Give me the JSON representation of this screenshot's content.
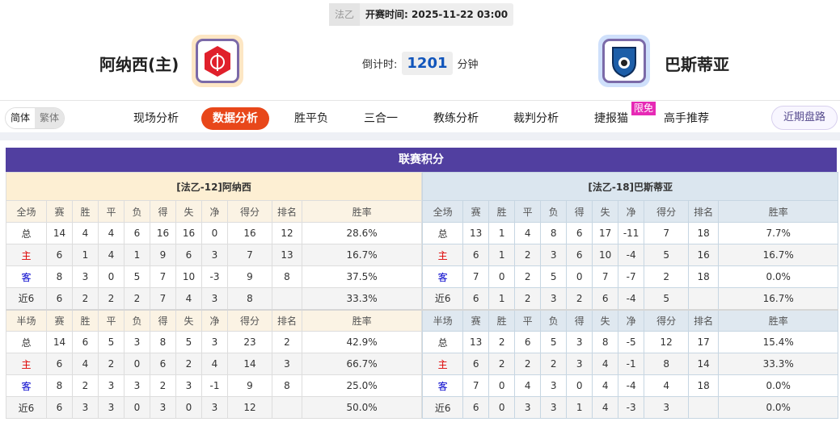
{
  "match": {
    "league": "法乙",
    "kickoff_label": "开赛时间:",
    "kickoff": "2025-11-22 03:00",
    "home": "阿纳西(主)",
    "away": "巴斯蒂亚",
    "countdown_label": "倒计时:",
    "countdown": "1201",
    "countdown_unit": "分钟"
  },
  "lang": {
    "simplified": "简体",
    "traditional": "繁体"
  },
  "nav": {
    "items": [
      "现场分析",
      "数据分析",
      "胜平负",
      "三合一",
      "教练分析",
      "裁判分析",
      "捷报猫",
      "高手推荐"
    ],
    "active": "数据分析",
    "badge": "限免",
    "recent": "近期盘路"
  },
  "colors": {
    "accent": "#e8471a",
    "title_bar": "#513fa0",
    "home_label": "#dd0000",
    "away_label": "#0000cc"
  },
  "standings": {
    "title": "联赛积分",
    "columns_full": [
      "全场",
      "赛",
      "胜",
      "平",
      "负",
      "得",
      "失",
      "净",
      "得分",
      "排名",
      "胜率"
    ],
    "columns_half": [
      "半场",
      "赛",
      "胜",
      "平",
      "负",
      "得",
      "失",
      "净",
      "得分",
      "排名",
      "胜率"
    ],
    "home": {
      "header": "[法乙-12]阿纳西",
      "full": [
        [
          "总",
          "14",
          "4",
          "4",
          "6",
          "16",
          "16",
          "0",
          "16",
          "12",
          "28.6%"
        ],
        [
          "主",
          "6",
          "1",
          "4",
          "1",
          "9",
          "6",
          "3",
          "7",
          "13",
          "16.7%"
        ],
        [
          "客",
          "8",
          "3",
          "0",
          "5",
          "7",
          "10",
          "-3",
          "9",
          "8",
          "37.5%"
        ],
        [
          "近6",
          "6",
          "2",
          "2",
          "2",
          "7",
          "4",
          "3",
          "8",
          "",
          "33.3%"
        ]
      ],
      "half": [
        [
          "总",
          "14",
          "6",
          "5",
          "3",
          "8",
          "5",
          "3",
          "23",
          "2",
          "42.9%"
        ],
        [
          "主",
          "6",
          "4",
          "2",
          "0",
          "6",
          "2",
          "4",
          "14",
          "3",
          "66.7%"
        ],
        [
          "客",
          "8",
          "2",
          "3",
          "3",
          "2",
          "3",
          "-1",
          "9",
          "8",
          "25.0%"
        ],
        [
          "近6",
          "6",
          "3",
          "3",
          "0",
          "3",
          "0",
          "3",
          "12",
          "",
          "50.0%"
        ]
      ]
    },
    "away": {
      "header": "[法乙-18]巴斯蒂亚",
      "full": [
        [
          "总",
          "13",
          "1",
          "4",
          "8",
          "6",
          "17",
          "-11",
          "7",
          "18",
          "7.7%"
        ],
        [
          "主",
          "6",
          "1",
          "2",
          "3",
          "6",
          "10",
          "-4",
          "5",
          "16",
          "16.7%"
        ],
        [
          "客",
          "7",
          "0",
          "2",
          "5",
          "0",
          "7",
          "-7",
          "2",
          "18",
          "0.0%"
        ],
        [
          "近6",
          "6",
          "1",
          "2",
          "3",
          "2",
          "6",
          "-4",
          "5",
          "",
          "16.7%"
        ]
      ],
      "half": [
        [
          "总",
          "13",
          "2",
          "6",
          "5",
          "3",
          "8",
          "-5",
          "12",
          "17",
          "15.4%"
        ],
        [
          "主",
          "6",
          "2",
          "2",
          "2",
          "3",
          "4",
          "-1",
          "8",
          "14",
          "33.3%"
        ],
        [
          "客",
          "7",
          "0",
          "4",
          "3",
          "0",
          "4",
          "-4",
          "4",
          "18",
          "0.0%"
        ],
        [
          "近6",
          "6",
          "0",
          "3",
          "3",
          "1",
          "4",
          "-3",
          "3",
          "",
          "0.0%"
        ]
      ]
    }
  }
}
